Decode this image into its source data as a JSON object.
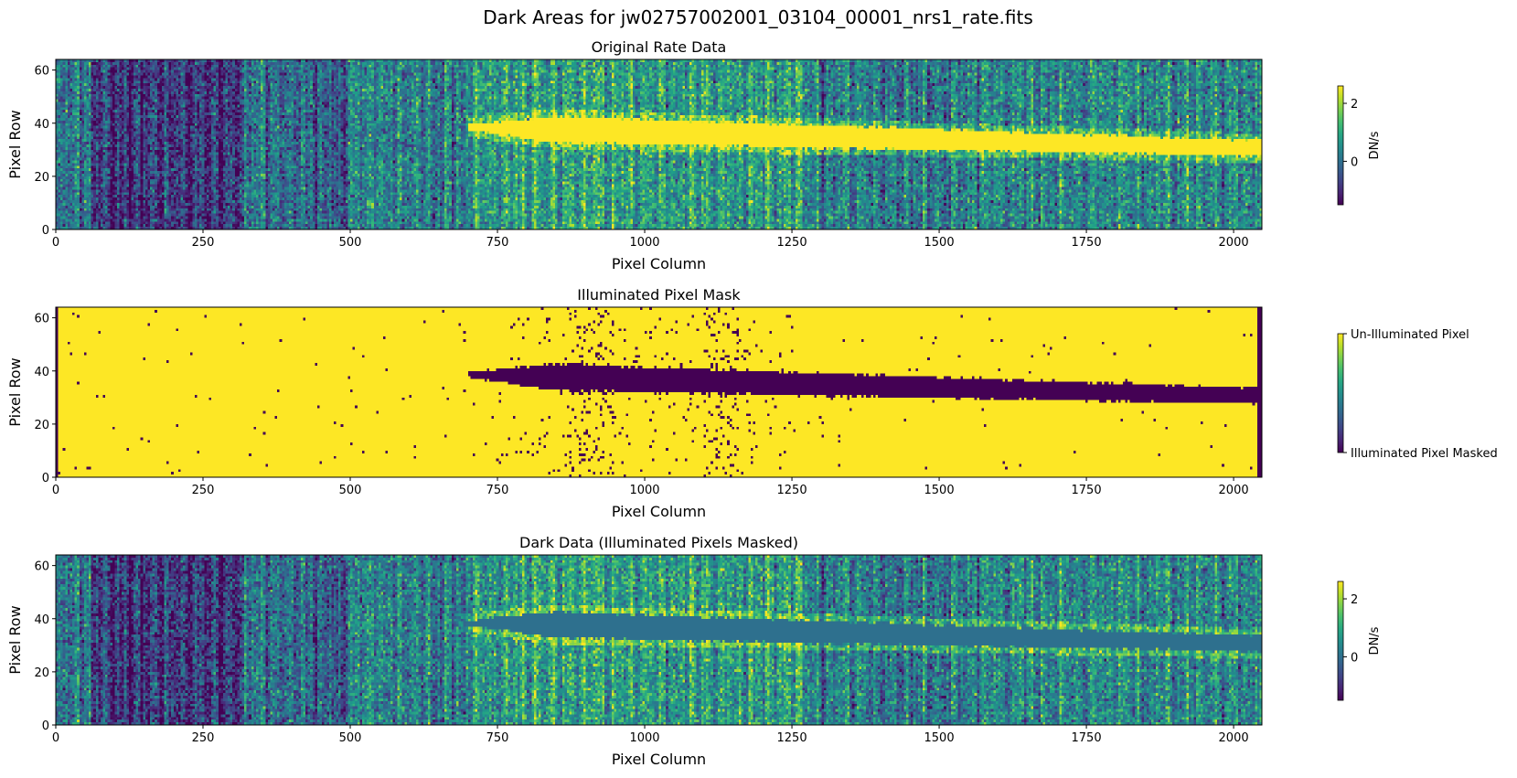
{
  "figure": {
    "suptitle": "Dark Areas for jw02757002001_03104_00001_nrs1_rate.fits"
  },
  "chart_data": [
    {
      "type": "heatmap",
      "title": "Original Rate Data",
      "xlabel": "Pixel Column",
      "ylabel": "Pixel Row",
      "xlim": [
        0,
        2048
      ],
      "ylim": [
        0,
        64
      ],
      "xticks": [
        0,
        250,
        500,
        750,
        1000,
        1250,
        1500,
        1750,
        2000
      ],
      "yticks": [
        0,
        20,
        40,
        60
      ],
      "colormap": "viridis",
      "colorbar": {
        "label": "DN/s",
        "vmin": -1.5,
        "vmax": 2.6,
        "ticks": [
          0,
          2
        ]
      },
      "trace": {
        "x_start": 700,
        "x_end": 2048,
        "center_start": 38,
        "center_end": 30,
        "halfwidth_max": 5,
        "halfwidth_end": 3
      }
    },
    {
      "type": "heatmap",
      "title": "Illuminated Pixel Mask",
      "xlabel": "Pixel Column",
      "ylabel": "Pixel Row",
      "xlim": [
        0,
        2048
      ],
      "ylim": [
        0,
        64
      ],
      "xticks": [
        0,
        250,
        500,
        750,
        1000,
        1250,
        1500,
        1750,
        2000
      ],
      "yticks": [
        0,
        20,
        40,
        60
      ],
      "colormap": "viridis",
      "colorbar": {
        "vmin": 0,
        "vmax": 1,
        "ticklabels": [
          {
            "value": 1,
            "label": "Un-Illuminated Pixel"
          },
          {
            "value": 0,
            "label": "Illuminated Pixel Masked"
          }
        ]
      },
      "trace": {
        "x_start": 700,
        "x_end": 2048,
        "center_start": 38,
        "center_end": 30,
        "halfwidth_max": 5,
        "halfwidth_end": 3
      }
    },
    {
      "type": "heatmap",
      "title": "Dark Data (Illuminated Pixels Masked)",
      "xlabel": "Pixel Column",
      "ylabel": "Pixel Row",
      "xlim": [
        0,
        2048
      ],
      "ylim": [
        0,
        64
      ],
      "xticks": [
        0,
        250,
        500,
        750,
        1000,
        1250,
        1500,
        1750,
        2000
      ],
      "yticks": [
        0,
        20,
        40,
        60
      ],
      "colormap": "viridis",
      "colorbar": {
        "label": "DN/s",
        "vmin": -1.5,
        "vmax": 2.6,
        "ticks": [
          0,
          2
        ]
      },
      "masked_fill_value": 0,
      "trace": {
        "x_start": 700,
        "x_end": 2048,
        "center_start": 38,
        "center_end": 30,
        "halfwidth_max": 5,
        "halfwidth_end": 3
      }
    }
  ]
}
